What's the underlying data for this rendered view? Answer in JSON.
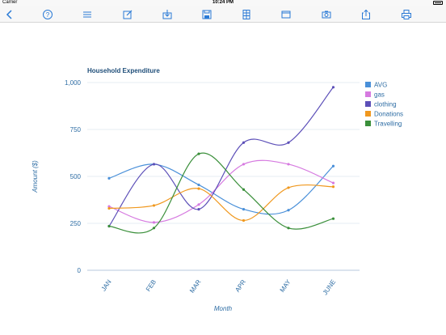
{
  "status_bar": {
    "carrier": "Carrier",
    "time": "10:24 PM"
  },
  "toolbar": {
    "icons": [
      "back-chevron-icon",
      "help-icon",
      "list-icon",
      "edit-icon",
      "download-icon",
      "save-disk-icon",
      "table-columns-icon",
      "window-icon",
      "camera-icon",
      "share-icon",
      "print-icon"
    ]
  },
  "colors": {
    "accent": "#2a7ad6",
    "AVG": "#4a90d9",
    "gas": "#d67ae0",
    "clothing": "#5c4fb8",
    "Donations": "#f0981e",
    "Travelling": "#3a8f3a"
  },
  "chart_data": {
    "type": "line",
    "title": "Household Expenditure",
    "xlabel": "Month",
    "ylabel": "Amount ($)",
    "categories": [
      "JAN",
      "FEB",
      "MAR",
      "APR",
      "MAY",
      "JUNE"
    ],
    "ylim": [
      0,
      1000
    ],
    "yticks": [
      "0",
      "250",
      "500",
      "750",
      "1,000"
    ],
    "ytick_values": [
      0,
      250,
      500,
      750,
      1000
    ],
    "grid": true,
    "legend_position": "top-right",
    "series": [
      {
        "name": "AVG",
        "values": [
          490,
          565,
          455,
          325,
          320,
          555
        ]
      },
      {
        "name": "gas",
        "values": [
          340,
          255,
          350,
          565,
          565,
          465
        ]
      },
      {
        "name": "clothing",
        "values": [
          235,
          565,
          325,
          680,
          680,
          975
        ]
      },
      {
        "name": "Donations",
        "values": [
          330,
          345,
          435,
          265,
          440,
          445
        ]
      },
      {
        "name": "Travelling",
        "values": [
          235,
          225,
          620,
          430,
          225,
          275
        ]
      }
    ]
  }
}
